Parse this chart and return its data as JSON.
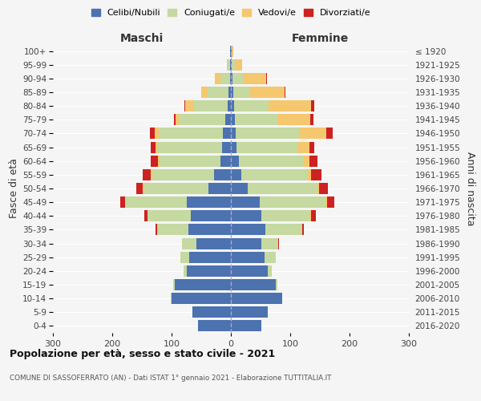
{
  "age_groups": [
    "0-4",
    "5-9",
    "10-14",
    "15-19",
    "20-24",
    "25-29",
    "30-34",
    "35-39",
    "40-44",
    "45-49",
    "50-54",
    "55-59",
    "60-64",
    "65-69",
    "70-74",
    "75-79",
    "80-84",
    "85-89",
    "90-94",
    "95-99",
    "100+"
  ],
  "birth_years": [
    "2016-2020",
    "2011-2015",
    "2006-2010",
    "2001-2005",
    "1996-2000",
    "1991-1995",
    "1986-1990",
    "1981-1985",
    "1976-1980",
    "1971-1975",
    "1966-1970",
    "1961-1965",
    "1956-1960",
    "1951-1955",
    "1946-1950",
    "1941-1945",
    "1936-1940",
    "1931-1935",
    "1926-1930",
    "1921-1925",
    "≤ 1920"
  ],
  "males": {
    "celibi": [
      55,
      65,
      100,
      95,
      75,
      70,
      58,
      72,
      68,
      75,
      38,
      28,
      18,
      15,
      14,
      10,
      5,
      4,
      2,
      1,
      1
    ],
    "coniugati": [
      0,
      0,
      1,
      2,
      5,
      15,
      24,
      52,
      72,
      102,
      108,
      105,
      102,
      108,
      108,
      78,
      58,
      35,
      15,
      4,
      1
    ],
    "vedovi": [
      0,
      0,
      0,
      0,
      0,
      0,
      0,
      1,
      1,
      2,
      2,
      2,
      3,
      4,
      7,
      5,
      14,
      11,
      10,
      2,
      0
    ],
    "divorziati": [
      0,
      0,
      0,
      0,
      0,
      0,
      1,
      2,
      5,
      8,
      12,
      14,
      12,
      8,
      8,
      3,
      2,
      0,
      0,
      0,
      0
    ]
  },
  "females": {
    "nubili": [
      52,
      62,
      86,
      76,
      62,
      57,
      52,
      58,
      52,
      48,
      28,
      18,
      14,
      10,
      8,
      7,
      5,
      4,
      3,
      2,
      1
    ],
    "coniugate": [
      0,
      0,
      1,
      2,
      7,
      18,
      28,
      62,
      82,
      112,
      118,
      112,
      108,
      102,
      108,
      72,
      58,
      28,
      18,
      5,
      1
    ],
    "vedove": [
      0,
      0,
      0,
      0,
      0,
      0,
      0,
      0,
      1,
      2,
      3,
      5,
      10,
      20,
      45,
      55,
      72,
      58,
      38,
      12,
      2
    ],
    "divorziate": [
      0,
      0,
      0,
      0,
      0,
      0,
      1,
      3,
      8,
      12,
      14,
      18,
      14,
      8,
      10,
      5,
      5,
      2,
      2,
      0,
      0
    ]
  },
  "colors": {
    "celibi": "#4c72b0",
    "coniugati": "#c5d9a0",
    "vedovi": "#f5c76e",
    "divorziati": "#cc2222"
  },
  "title": "Popolazione per età, sesso e stato civile - 2021",
  "subtitle": "COMUNE DI SASSOFERRATO (AN) - Dati ISTAT 1° gennaio 2021 - Elaborazione TUTTITALIA.IT",
  "label_maschi": "Maschi",
  "label_femmine": "Femmine",
  "ylabel_left": "Fasce di età",
  "ylabel_right": "Anni di nascita",
  "xlim": 300,
  "legend_labels": [
    "Celibi/Nubili",
    "Coniugati/e",
    "Vedovi/e",
    "Divorziati/e"
  ],
  "bg_color": "#f5f5f5",
  "grid_color": "#ffffff",
  "center_line_color": "#aaaacc"
}
